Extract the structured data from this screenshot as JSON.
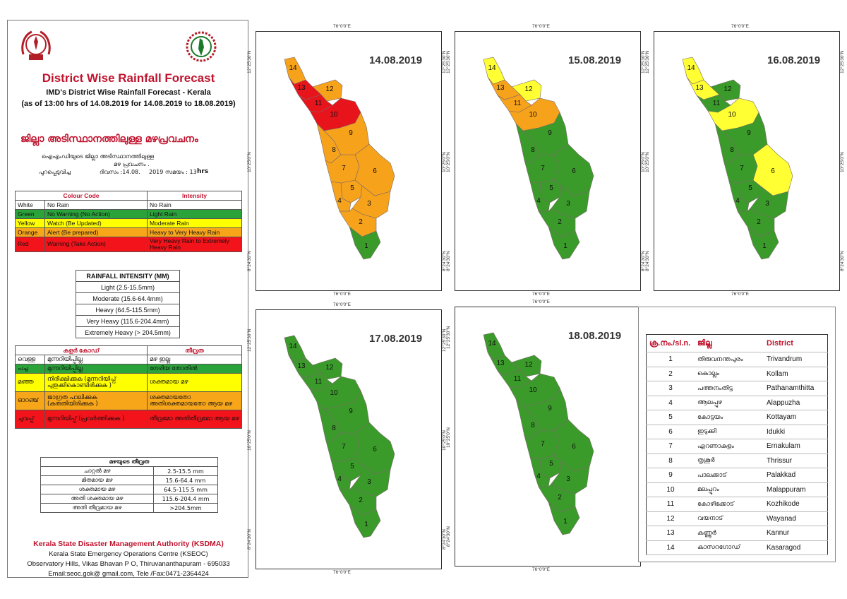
{
  "header": {
    "title": "District Wise Rainfall Forecast",
    "subtitle": "IMD's District Wise Rainfall Forecast - Kerala",
    "issued": "(as of 13:00 hrs of 14.08.2019  for 14.08.2019 to 18.08.2019)",
    "ml_title": "ജില്ലാ അടിസ്ഥാനത്തിലുള്ള  മഴപ്രവചനം",
    "ml_line1": "ഐഎംഡിയുടെ  ജില്ലാ  അടിസ്ഥാനത്തിലുള്ള",
    "ml_line2": "മഴ പ്രവചനം  .",
    "ml_line3a": "പുറപ്പെടുവിച്ച",
    "ml_line3b": "ദിവസം :14.08.",
    "ml_line3c": "2019  സമയം : 13",
    "ml_line3d": "hrs"
  },
  "colour_code": {
    "header": [
      "Colour Code",
      "Intensity"
    ],
    "rows": [
      {
        "name": "White",
        "code": "No Rain",
        "intensity": "No Rain",
        "cls": "r-white"
      },
      {
        "name": "Green",
        "code": "No Warning (No Action)",
        "intensity": "Light Rain",
        "cls": "r-green"
      },
      {
        "name": "Yellow",
        "code": "Watch (Be Updated)",
        "intensity": "Moderate Rain",
        "cls": "r-yellow"
      },
      {
        "name": "Orange",
        "code": "Alert (Be prepared)",
        "intensity": "Heavy to Very Heavy Rain",
        "cls": "r-orange"
      },
      {
        "name": "Red",
        "code": "Warning (Take Action)",
        "intensity": "Very Heavy Rain to Extremely Heavy Rain",
        "cls": "r-red"
      }
    ]
  },
  "rainfall_intensity": {
    "title": "RAINFALL INTENSITY (MM)",
    "rows": [
      "Light (2.5-15.5mm)",
      "Moderate (15.6-64.4mm)",
      "Heavy (64.5-115.5mm)",
      "Very Heavy (115.6-204.4mm)",
      "Extremely Heavy (> 204.5mm)"
    ]
  },
  "ml_colour_code": {
    "header": [
      "കളർ കോഡ്",
      "തീവ്രത"
    ],
    "rows": [
      {
        "name": "വെള്ള",
        "code": "മുന്നറിയിപ്പില്ല",
        "intensity": "മഴ ഇല്ല",
        "cls": "r-white"
      },
      {
        "name": "പച്ച",
        "code": "മുന്നറിയിപ്പില്ല",
        "intensity": "നേരിയ തോതിൽ",
        "cls": "r-green"
      },
      {
        "name": "മഞ്ഞ",
        "code": "നിരീക്ഷിക്കുക (മുന്നറിയിപ്പ് പുതുക്കികൊണ്ടിരിക്കുക )",
        "intensity": "ശക്തമായ മഴ",
        "cls": "r-yellow"
      },
      {
        "name": "ഓറഞ്ച്",
        "code": "ജാഗ്രത പാലിക്കുക (കരുതിയിരിക്കുക )",
        "intensity": "ശക്തമായതോ അതിശക്തമായതോ ആയ മഴ",
        "cls": "r-orange"
      },
      {
        "name": "ചുവപ്പ്",
        "code": "മുന്നറിയിപ്പ് (പ്രവർത്തിക്കുക )",
        "intensity": "തീവ്രമോ അതിതീവ്രമോ ആയ മഴ",
        "cls": "r-red"
      }
    ]
  },
  "ml_intensity": {
    "title": "മഴയുടെ തീവ്രത",
    "rows": [
      {
        "name": "ചാറ്റൽ മഴ",
        "range": "2.5-15.5 mm"
      },
      {
        "name": "മിതമായ മഴ",
        "range": "15.6-64.4 mm"
      },
      {
        "name": "ശക്തമായ മഴ",
        "range": "64.5-115.5 mm"
      },
      {
        "name": "അതി ശക്തമായ മഴ",
        "range": "115.6-204.4 mm"
      },
      {
        "name": "അതി തീവ്രമായ മഴ",
        "range": ">204.5mm"
      }
    ]
  },
  "footer": {
    "org": "Kerala State Disaster Management Authority (KSDMA)",
    "centre": "Kerala State Emergency Operations Centre (KSEOC)",
    "address": "Observatory Hills, Vikas Bhavan P O, Thiruvananthapuram - 695033",
    "contact": "Email:seoc.gok@ gmail.com, Tele /Fax:0471-2364424"
  },
  "axes": {
    "lon": "76°0'0\"E",
    "lat_top": "12°25'30\"N",
    "lat_mid": "10°25'0\"N",
    "lat_bot": "8°24'30\"N"
  },
  "colors": {
    "green": "#3a9b2a",
    "yellow": "#ffff33",
    "orange": "#f7a21b",
    "red": "#e8141b"
  },
  "maps": [
    {
      "date": "14.08.2019",
      "districts": {
        "1": "green",
        "2": "orange",
        "3": "orange",
        "4": "orange",
        "5": "orange",
        "6": "orange",
        "7": "orange",
        "8": "orange",
        "9": "orange",
        "10": "red",
        "11": "red",
        "12": "orange",
        "13": "red",
        "14": "orange"
      }
    },
    {
      "date": "15.08.2019",
      "districts": {
        "1": "green",
        "2": "green",
        "3": "green",
        "4": "green",
        "5": "green",
        "6": "green",
        "7": "green",
        "8": "green",
        "9": "green",
        "10": "orange",
        "11": "orange",
        "12": "yellow",
        "13": "orange",
        "14": "yellow"
      }
    },
    {
      "date": "16.08.2019",
      "districts": {
        "1": "green",
        "2": "green",
        "3": "green",
        "4": "green",
        "5": "green",
        "6": "yellow",
        "7": "green",
        "8": "green",
        "9": "green",
        "10": "yellow",
        "11": "green",
        "12": "green",
        "13": "yellow",
        "14": "yellow"
      }
    },
    {
      "date": "17.08.2019",
      "districts": {
        "1": "green",
        "2": "green",
        "3": "green",
        "4": "green",
        "5": "green",
        "6": "green",
        "7": "green",
        "8": "green",
        "9": "green",
        "10": "green",
        "11": "green",
        "12": "green",
        "13": "green",
        "14": "green"
      }
    },
    {
      "date": "18.08.2019",
      "districts": {
        "1": "green",
        "2": "green",
        "3": "green",
        "4": "green",
        "5": "green",
        "6": "green",
        "7": "green",
        "8": "green",
        "9": "green",
        "10": "green",
        "11": "green",
        "12": "green",
        "13": "green",
        "14": "green"
      }
    }
  ],
  "district_table": {
    "header": [
      "ക്ര.നം./sl.n.",
      "ജില്ല",
      "District"
    ],
    "rows": [
      [
        "1",
        "തിരുവനന്തപുരം",
        "Trivandrum"
      ],
      [
        "2",
        "കൊല്ലം",
        "Kollam"
      ],
      [
        "3",
        "പത്തനംതിട്ട",
        "Pathanamthitta"
      ],
      [
        "4",
        "ആലപ്പുഴ",
        "Alappuzha"
      ],
      [
        "5",
        "കോട്ടയം",
        "Kottayam"
      ],
      [
        "6",
        "ഇടുക്കി",
        "Idukki"
      ],
      [
        "7",
        "എറണാകുളം",
        "Ernakulam"
      ],
      [
        "8",
        "തൃശൂർ",
        "Thrissur"
      ],
      [
        "9",
        "പാലക്കാട്",
        "Palakkad"
      ],
      [
        "10",
        "മലപ്പുറം",
        "Malappuram"
      ],
      [
        "11",
        "കോഴിക്കോട്",
        "Kozhikode"
      ],
      [
        "12",
        "വയനാട്",
        "Wayanad"
      ],
      [
        "13",
        "കണ്ണൂർ",
        "Kannur"
      ],
      [
        "14",
        "കാസറഗോഡ്",
        "Kasaragod"
      ]
    ]
  }
}
